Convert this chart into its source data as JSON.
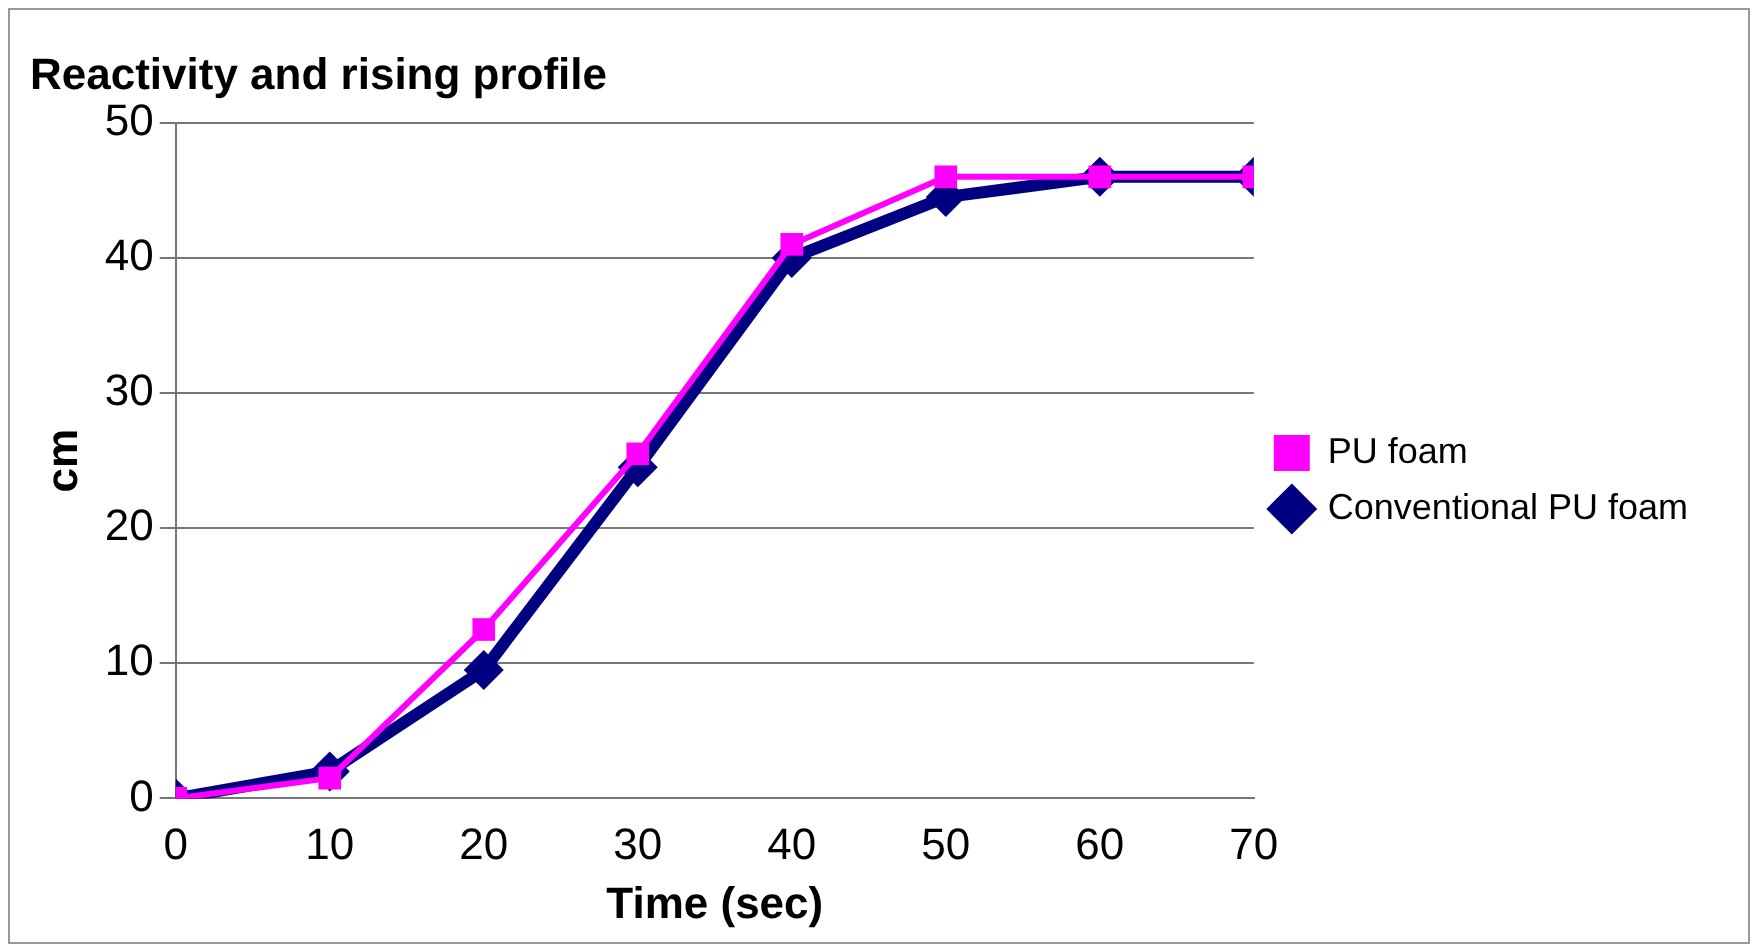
{
  "chart_data": {
    "type": "line",
    "title": "Reactivity and rising profile",
    "xlabel": "Time (sec)",
    "ylabel": "cm",
    "x": [
      0,
      10,
      20,
      30,
      40,
      50,
      60,
      70
    ],
    "series": [
      {
        "name": "Conventional PU foam",
        "color": "#000080",
        "marker": "diamond",
        "values": [
          0,
          2,
          9.5,
          24.5,
          40,
          44.5,
          46,
          46
        ]
      },
      {
        "name": "PU foam",
        "color": "#ff00ff",
        "marker": "square",
        "values": [
          0,
          1.5,
          12.5,
          25.5,
          41,
          46,
          46,
          46
        ]
      }
    ],
    "xlim": [
      0,
      70
    ],
    "xticks": [
      0,
      10,
      20,
      30,
      40,
      50,
      60,
      70
    ],
    "ylim": [
      0,
      50
    ],
    "yticks": [
      0,
      10,
      20,
      30,
      40,
      50
    ],
    "grid": "y",
    "legend": "right"
  }
}
